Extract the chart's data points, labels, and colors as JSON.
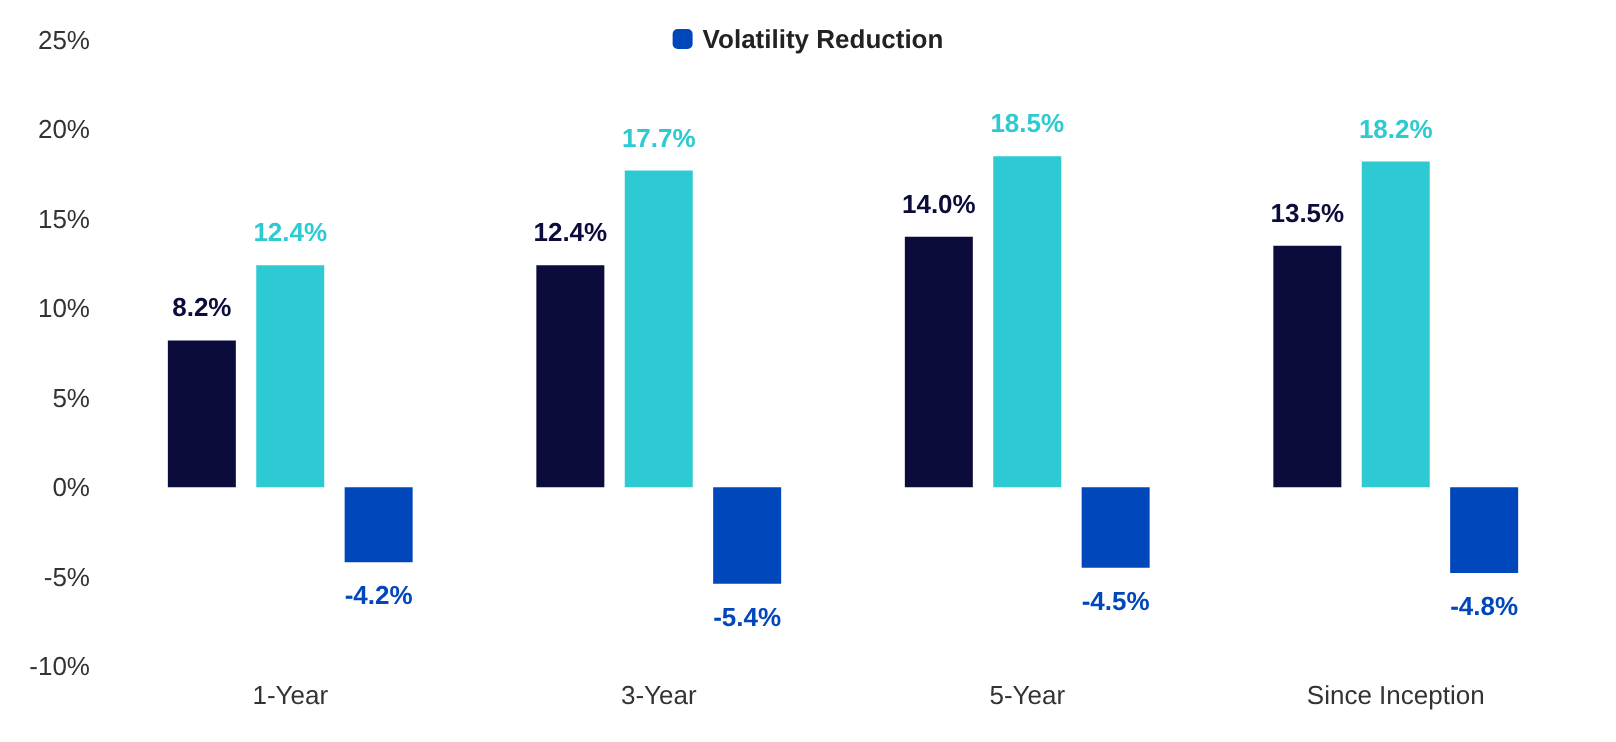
{
  "chart_data": {
    "type": "bar",
    "categories": [
      "1-Year",
      "3-Year",
      "5-Year",
      "Since Inception"
    ],
    "series": [
      {
        "color": "#0c0c3c",
        "values": [
          8.2,
          12.4,
          14.0,
          13.5
        ],
        "value_labels": [
          "8.2%",
          "12.4%",
          "14.0%",
          "13.5%"
        ]
      },
      {
        "color": "#2ecad3",
        "values": [
          12.4,
          17.7,
          18.5,
          18.2
        ],
        "value_labels": [
          "12.4%",
          "17.7%",
          "18.5%",
          "18.2%"
        ]
      },
      {
        "name": "Volatility Reduction",
        "color": "#0047bb",
        "values": [
          -4.2,
          -5.4,
          -4.5,
          -4.8
        ],
        "value_labels": [
          "-4.2%",
          "-5.4%",
          "-4.5%",
          "-4.8%"
        ]
      }
    ],
    "ylim": [
      -10,
      25
    ],
    "yticks": [
      {
        "value": -10,
        "label": "-10%"
      },
      {
        "value": -5,
        "label": "-5%"
      },
      {
        "value": 0,
        "label": "0%"
      },
      {
        "value": 5,
        "label": "5%"
      },
      {
        "value": 10,
        "label": "10%"
      },
      {
        "value": 15,
        "label": "15%"
      },
      {
        "value": 20,
        "label": "20%"
      },
      {
        "value": 25,
        "label": "25%"
      }
    ],
    "grid": false,
    "legend": "top"
  }
}
